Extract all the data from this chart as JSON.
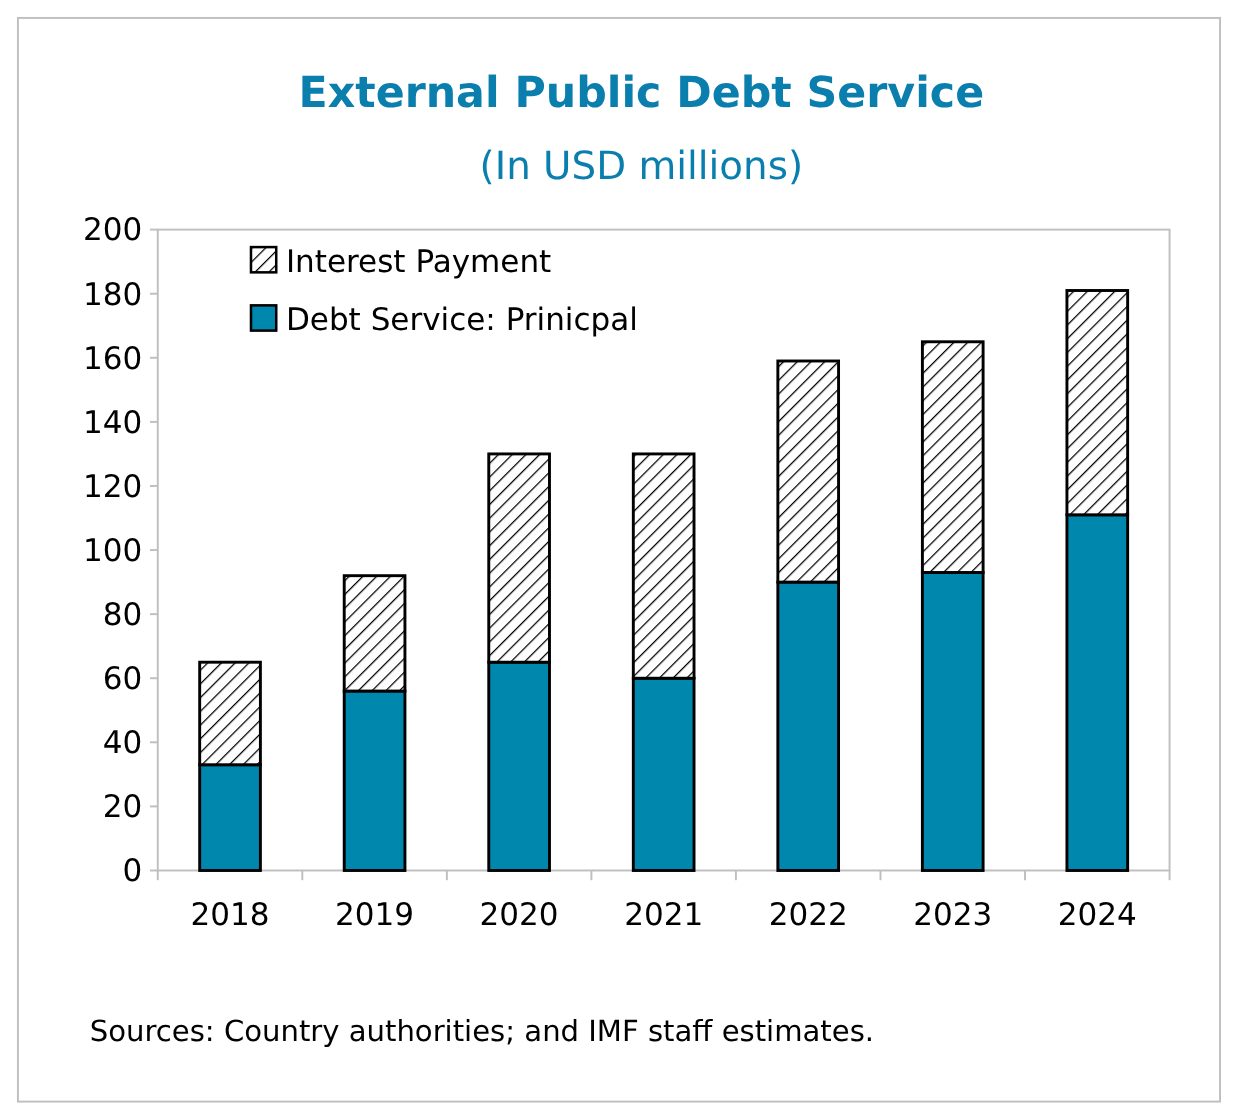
{
  "chart_data": {
    "type": "bar",
    "title": "External Public Debt Service",
    "subtitle": "(In USD millions)",
    "categories": [
      "2018",
      "2019",
      "2020",
      "2021",
      "2022",
      "2023",
      "2024"
    ],
    "stacked": true,
    "series": [
      {
        "name": "Debt Service: Prinicpal",
        "color": "#0087ad",
        "values": [
          33,
          56,
          65,
          60,
          90,
          93,
          111
        ]
      },
      {
        "name": "Interest Payment",
        "color": "#000000",
        "values": [
          32,
          36,
          65,
          70,
          69,
          72,
          70
        ]
      }
    ],
    "ylim": [
      0,
      200
    ],
    "yticks": [
      0,
      20,
      40,
      60,
      80,
      100,
      120,
      140,
      160,
      180,
      200
    ],
    "grid": false,
    "legend": "top left",
    "annotations": [
      "Sources:  Country authorities; and IMF staff estimates."
    ]
  }
}
